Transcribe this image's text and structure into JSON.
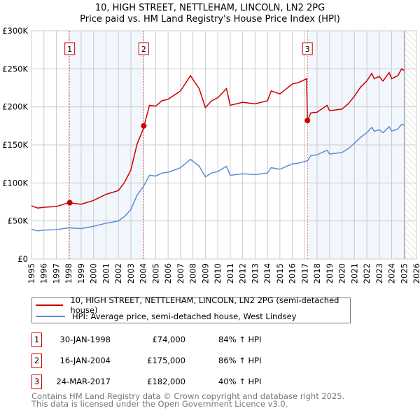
{
  "chart_data": {
    "type": "line",
    "title": "10, HIGH STREET, NETTLEHAM, LINCOLN, LN2 2PG",
    "subtitle": "Price paid vs. HM Land Registry's House Price Index (HPI)",
    "xlim": [
      1995,
      2026
    ],
    "ylim": [
      0,
      300000
    ],
    "yticks": [
      {
        "v": 0,
        "l": "£0"
      },
      {
        "v": 50000,
        "l": "£50K"
      },
      {
        "v": 100000,
        "l": "£100K"
      },
      {
        "v": 150000,
        "l": "£150K"
      },
      {
        "v": 200000,
        "l": "£200K"
      },
      {
        "v": 250000,
        "l": "£250K"
      },
      {
        "v": 300000,
        "l": "£300K"
      }
    ],
    "xticks": [
      "1995",
      "1996",
      "1997",
      "1998",
      "1999",
      "2000",
      "2001",
      "2002",
      "2003",
      "2004",
      "2005",
      "2006",
      "2007",
      "2008",
      "2009",
      "2010",
      "2011",
      "2012",
      "2013",
      "2014",
      "2015",
      "2016",
      "2017",
      "2018",
      "2019",
      "2020",
      "2021",
      "2022",
      "2023",
      "2024",
      "2025",
      "2026"
    ],
    "grid": true,
    "series": [
      {
        "name": "10, HIGH STREET, NETTLEHAM, LINCOLN, LN2 2PG (semi-detached house)",
        "color": "#cc0000",
        "x": [
          1995,
          1995.5,
          1996,
          1997,
          1998,
          1999,
          2000,
          2001,
          2002,
          2002.5,
          2003,
          2003.5,
          2004,
          2004.5,
          2005,
          2005.5,
          2006,
          2007,
          2007.8,
          2008.5,
          2009,
          2009.5,
          2010,
          2010.7,
          2011,
          2012,
          2013,
          2014,
          2014.3,
          2015,
          2016,
          2016.5,
          2017.15,
          2017.22,
          2017.5,
          2018,
          2018.8,
          2019,
          2020,
          2020.5,
          2021,
          2021.5,
          2022,
          2022.4,
          2022.6,
          2023,
          2023.3,
          2023.8,
          2024,
          2024.5,
          2024.8,
          2025
        ],
        "values": [
          70,
          67,
          68,
          69,
          74,
          72,
          77,
          85,
          90,
          101,
          117,
          151,
          171,
          202,
          201,
          208,
          210,
          221,
          241,
          224,
          199,
          208,
          212,
          224,
          202,
          206,
          204,
          208,
          221,
          217,
          230,
          232,
          237,
          182,
          192,
          193,
          202,
          195,
          197,
          204,
          214,
          226,
          234,
          244,
          237,
          240,
          234,
          245,
          237,
          241,
          250,
          248
        ]
      },
      {
        "name": "HPI: Average price, semi-detached house, West Lindsey",
        "color": "#5b8fd6",
        "x": [
          1995,
          1995.5,
          1996,
          1997,
          1998,
          1999,
          2000,
          2001,
          2002,
          2002.5,
          2003,
          2003.5,
          2004,
          2004.5,
          2005,
          2005.5,
          2006,
          2007,
          2007.8,
          2008.5,
          2009,
          2009.5,
          2010,
          2010.7,
          2011,
          2012,
          2013,
          2014,
          2014.3,
          2015,
          2016,
          2016.5,
          2017.15,
          2017.22,
          2017.5,
          2018,
          2018.8,
          2019,
          2020,
          2020.5,
          2021,
          2021.5,
          2022,
          2022.4,
          2022.6,
          2023,
          2023.3,
          2023.8,
          2024,
          2024.5,
          2024.8,
          2025
        ],
        "values": [
          39,
          37,
          38,
          38.5,
          41,
          40,
          43,
          47,
          50,
          56,
          65,
          84,
          95,
          110,
          109,
          113,
          114,
          120,
          131,
          122,
          108,
          113,
          115,
          122,
          110,
          112,
          111,
          113,
          120,
          118,
          125,
          126,
          129,
          129,
          136,
          137,
          143,
          138,
          140,
          145,
          152,
          160,
          166,
          173,
          168,
          170,
          166,
          174,
          168,
          171,
          177,
          176
        ]
      }
    ],
    "value_unit": "thousands GBP",
    "sales": [
      {
        "n": "1",
        "x": 1998.08,
        "price": 74
      },
      {
        "n": "2",
        "x": 2004.04,
        "price": 175
      },
      {
        "n": "3",
        "x": 2017.22,
        "price": 182
      }
    ],
    "shaded": [
      [
        1998.08,
        2004.04
      ],
      [
        2017.22,
        2025.05
      ]
    ],
    "hatched_from": 2025.05
  },
  "legend": [
    "10, HIGH STREET, NETTLEHAM, LINCOLN, LN2 2PG (semi-detached house)",
    "HPI: Average price, semi-detached house, West Lindsey"
  ],
  "transactions": [
    {
      "n": "1",
      "date": "30-JAN-1998",
      "price": "£74,000",
      "hpi": "84% ↑ HPI"
    },
    {
      "n": "2",
      "date": "16-JAN-2004",
      "price": "£175,000",
      "hpi": "86% ↑ HPI"
    },
    {
      "n": "3",
      "date": "24-MAR-2017",
      "price": "£182,000",
      "hpi": "40% ↑ HPI"
    }
  ],
  "footer": [
    "Contains HM Land Registry data © Crown copyright and database right 2025.",
    "This data is licensed under the Open Government Licence v3.0."
  ]
}
